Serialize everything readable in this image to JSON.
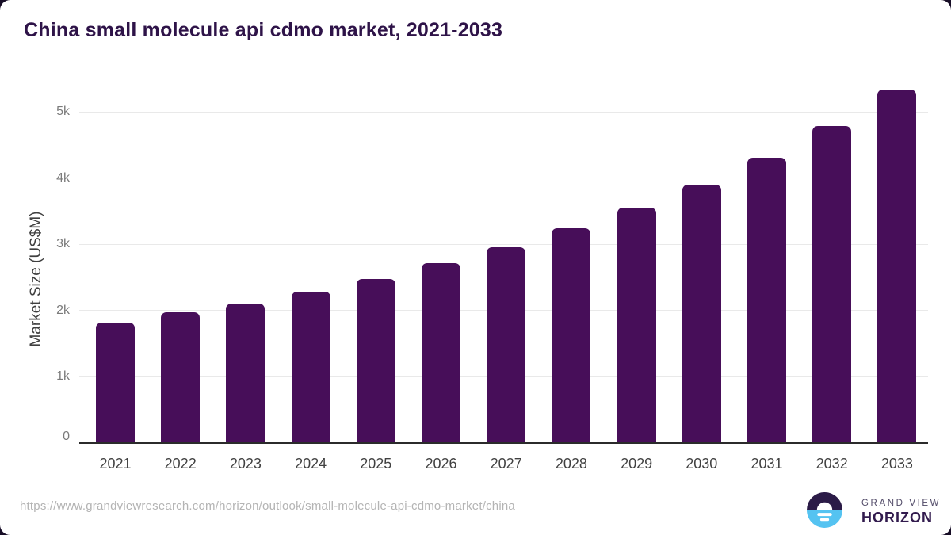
{
  "title": "China small molecule api cdmo market, 2021-2033",
  "chart_data": {
    "type": "bar",
    "title": "China small molecule api cdmo market, 2021-2033",
    "categories": [
      "2021",
      "2022",
      "2023",
      "2024",
      "2025",
      "2026",
      "2027",
      "2028",
      "2029",
      "2030",
      "2031",
      "2032",
      "2033"
    ],
    "values": [
      1820,
      1970,
      2110,
      2290,
      2480,
      2720,
      2960,
      3240,
      3550,
      3900,
      4310,
      4790,
      5330
    ],
    "xlabel": "",
    "ylabel": "Market Size (US$M)",
    "ylim": [
      0,
      5440
    ],
    "yticks": [
      {
        "label": "0",
        "value": 0
      },
      {
        "label": "1k",
        "value": 1000
      },
      {
        "label": "2k",
        "value": 2000
      },
      {
        "label": "3k",
        "value": 3000
      },
      {
        "label": "4k",
        "value": 4000
      },
      {
        "label": "5k",
        "value": 5000
      }
    ],
    "grid": "horizontal-light",
    "legend": "none",
    "bar_color": "#470e59"
  },
  "footer": {
    "source_url": "https://www.grandviewresearch.com/horizon/outlook/small-molecule-api-cdmo-market/china",
    "logo": {
      "line1": "GRAND VIEW",
      "line2": "HORIZON",
      "icon": "horizon-sunrise-circle-icon"
    }
  },
  "colors": {
    "bar": "#470e59",
    "title_text": "#2e1348",
    "axis_text": "#7b7b7b",
    "x_label_text": "#414141",
    "gridline": "#e9e9e9",
    "axis_line": "#2b2b2b",
    "url_text": "#b4b4b4",
    "logo_dark": "#2b1b47",
    "logo_blue": "#55c3f1",
    "page_backdrop": "#170d26"
  }
}
